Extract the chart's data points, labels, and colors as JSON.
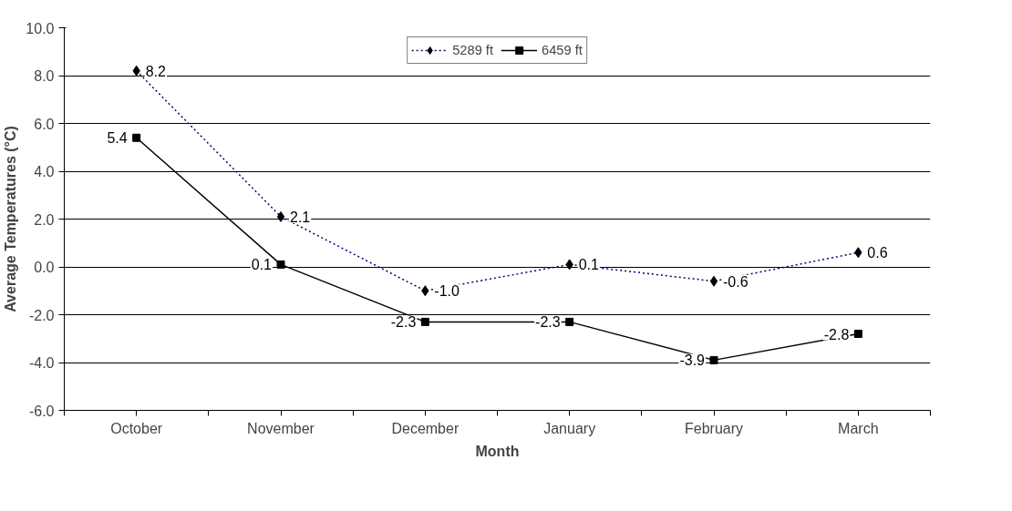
{
  "chart_data": {
    "type": "line",
    "xlabel": "Month",
    "ylabel": "Average Temperatures (°C)",
    "categories": [
      "October",
      "November",
      "December",
      "January",
      "February",
      "March"
    ],
    "series": [
      {
        "name": "5289 ft",
        "color": "#000080",
        "marker": "diamond",
        "line_style": "dotted",
        "values": [
          8.2,
          2.1,
          -1.0,
          0.1,
          -0.6,
          0.6
        ],
        "value_labels": [
          "8.2",
          "2.1",
          "-1.0",
          "0.1",
          "-0.6",
          "0.6"
        ]
      },
      {
        "name": "6459 ft",
        "color": "#000000",
        "marker": "square",
        "line_style": "solid",
        "values": [
          5.4,
          0.1,
          -2.3,
          -2.3,
          -3.9,
          -2.8
        ],
        "value_labels": [
          "5.4",
          "0.1",
          "-2.3",
          "-2.3",
          "-3.9",
          "-2.8"
        ]
      }
    ],
    "ylim": [
      -6,
      10
    ],
    "yticks": [
      {
        "value": -6,
        "label": "-6.0"
      },
      {
        "value": -4,
        "label": "-4.0"
      },
      {
        "value": -2,
        "label": "-2.0"
      },
      {
        "value": 0,
        "label": "0.0"
      },
      {
        "value": 2,
        "label": "2.0"
      },
      {
        "value": 4,
        "label": "4.0"
      },
      {
        "value": 6,
        "label": "6.0"
      },
      {
        "value": 8,
        "label": "8.0"
      },
      {
        "value": 10,
        "label": "10.0"
      }
    ],
    "grid": "y",
    "legend": "top"
  }
}
